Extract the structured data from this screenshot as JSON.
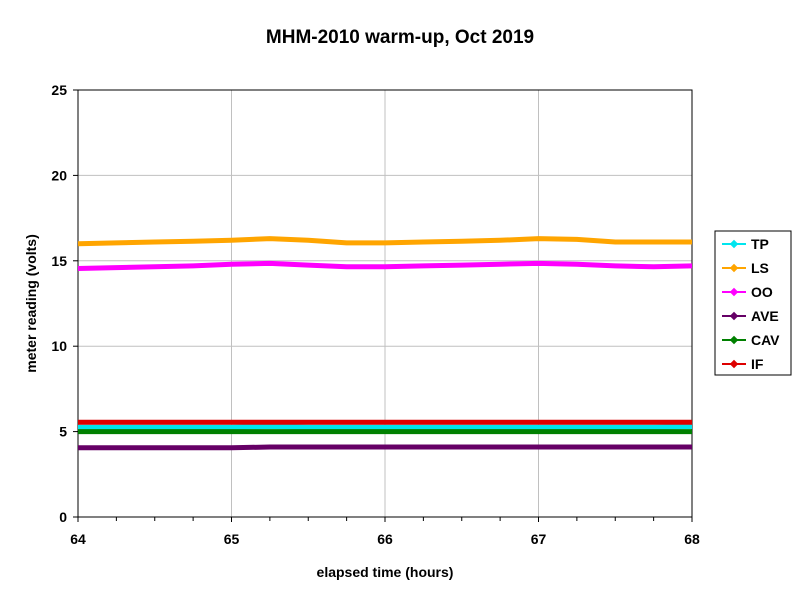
{
  "chart_data": {
    "type": "line",
    "title": "MHM-2010 warm-up, Oct 2019",
    "xlabel": "elapsed time (hours)",
    "ylabel": "meter reading (volts)",
    "xlim": [
      64,
      68
    ],
    "ylim": [
      0,
      25
    ],
    "xticks": [
      64,
      65,
      66,
      67,
      68
    ],
    "yticks": [
      0,
      5,
      10,
      15,
      20,
      25
    ],
    "grid": true,
    "legend_position": "right",
    "x": [
      64.0,
      64.25,
      64.5,
      64.75,
      65.0,
      65.25,
      65.5,
      65.75,
      66.0,
      66.25,
      66.5,
      66.75,
      67.0,
      67.25,
      67.5,
      67.75,
      68.0
    ],
    "series": [
      {
        "name": "TP",
        "color": "#00e5ee",
        "values": [
          5.25,
          5.25,
          5.25,
          5.25,
          5.25,
          5.3,
          5.25,
          5.25,
          5.25,
          5.25,
          5.25,
          5.25,
          5.25,
          5.25,
          5.25,
          5.25,
          5.3
        ]
      },
      {
        "name": "LS",
        "color": "#ffa500",
        "values": [
          16.0,
          16.05,
          16.1,
          16.15,
          16.2,
          16.3,
          16.2,
          16.05,
          16.05,
          16.1,
          16.15,
          16.2,
          16.3,
          16.25,
          16.1,
          16.1,
          16.1
        ]
      },
      {
        "name": "OO",
        "color": "#ff00ff",
        "values": [
          14.55,
          14.6,
          14.65,
          14.7,
          14.8,
          14.85,
          14.75,
          14.65,
          14.65,
          14.7,
          14.75,
          14.8,
          14.85,
          14.8,
          14.7,
          14.65,
          14.7
        ]
      },
      {
        "name": "AVE",
        "color": "#660066",
        "values": [
          4.05,
          4.05,
          4.05,
          4.05,
          4.05,
          4.1,
          4.1,
          4.1,
          4.1,
          4.1,
          4.1,
          4.1,
          4.1,
          4.1,
          4.1,
          4.1,
          4.1
        ]
      },
      {
        "name": "CAV",
        "color": "#008000",
        "values": [
          5.0,
          5.0,
          5.0,
          5.0,
          5.0,
          5.0,
          5.0,
          5.0,
          5.0,
          5.0,
          5.0,
          5.0,
          5.0,
          5.0,
          5.0,
          5.0,
          5.0
        ]
      },
      {
        "name": "IF",
        "color": "#dd0000",
        "values": [
          5.55,
          5.55,
          5.55,
          5.55,
          5.55,
          5.55,
          5.55,
          5.55,
          5.55,
          5.55,
          5.55,
          5.55,
          5.55,
          5.55,
          5.55,
          5.55,
          5.55
        ]
      }
    ]
  }
}
